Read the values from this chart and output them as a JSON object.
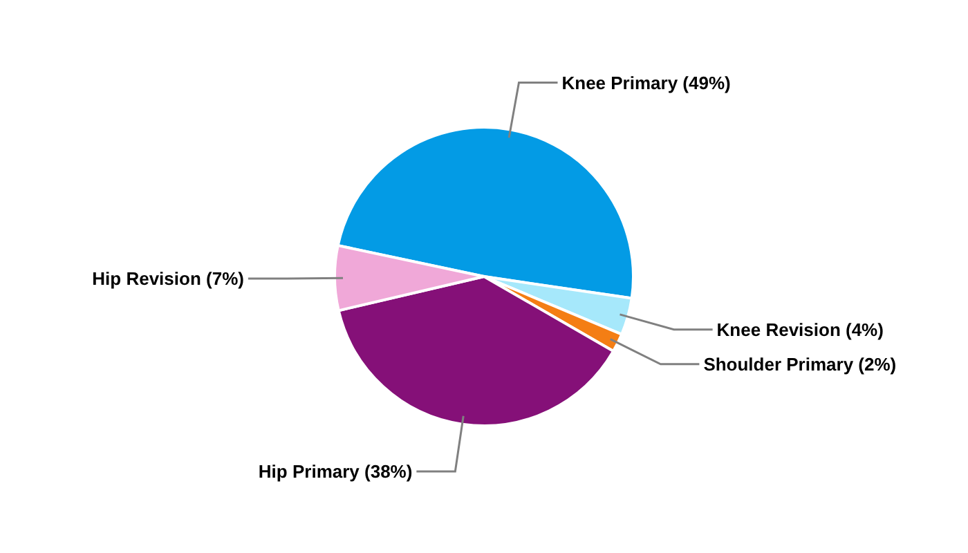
{
  "chart_data": {
    "type": "pie",
    "categories": [
      "Knee Primary",
      "Knee Revision",
      "Shoulder Primary",
      "Hip Primary",
      "Hip Revision"
    ],
    "values": [
      49,
      4,
      2,
      38,
      7
    ],
    "colors": [
      "#039be5",
      "#a6e8fb",
      "#f47e14",
      "#851078",
      "#f0a8d8"
    ],
    "value_labels": [
      "(49%)",
      "(4%)",
      "(2%)",
      "(38%)",
      "(7%)"
    ]
  }
}
